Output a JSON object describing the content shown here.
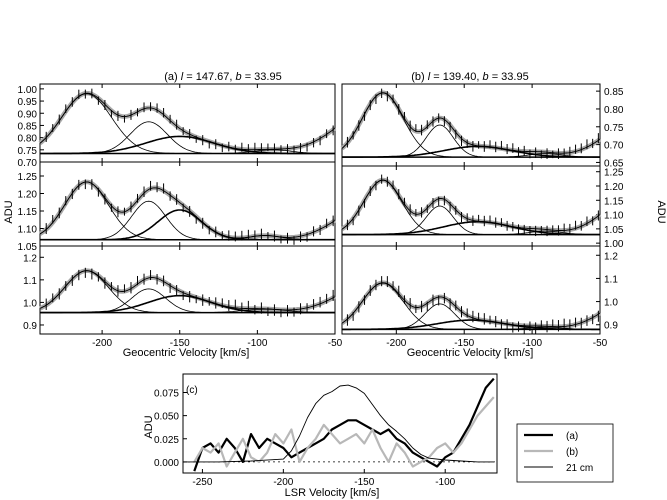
{
  "panel_titles": {
    "a": {
      "prefix": "(a) ",
      "l_sym": "l",
      "l_val": " = 147.67,  ",
      "b_sym": "b",
      "b_val": " =  33.95"
    },
    "b": {
      "prefix": "(b) ",
      "l_sym": "l",
      "l_val": " = 139.40,  ",
      "b_sym": "b",
      "b_val": " =  33.95"
    }
  },
  "labels": {
    "adu_left": "ADU",
    "adu_right": "ADU",
    "xlabel_a": "Geocentric Velocity [km/s]",
    "xlabel_b": "Geocentric Velocity [km/s]",
    "xlabel_c": "LSR Velocity [km/s]",
    "ylabel_c": "ADU",
    "panel_c_tag": "(c)"
  },
  "colors": {
    "spectrum_a": "#000000",
    "spectrum_b": "#b8b8b8",
    "hi_21cm": "#000000",
    "model_gray": "#a8a8a8",
    "error_bar": "#000000"
  },
  "chart_data": [
    {
      "id": "a-row1",
      "type": "line",
      "x_range": [
        -240,
        -50
      ],
      "ylim": [
        0.7,
        1.02
      ],
      "y_ticks": [
        "0.70",
        "0.75",
        "0.80",
        "0.85",
        "0.90",
        "0.95",
        "1.00"
      ],
      "y_side": "left",
      "continuum": 0.735,
      "components": [
        {
          "center": -210,
          "sigma": 16,
          "amplitude": 0.245
        },
        {
          "center": -170,
          "sigma": 12,
          "amplitude": 0.13
        },
        {
          "center": -150,
          "sigma": 22,
          "amplitude": 0.07
        },
        {
          "center": -90,
          "sigma": 12,
          "amplitude": 0.015
        }
      ],
      "wing": {
        "start": -95,
        "amplitude": 0.08
      }
    },
    {
      "id": "a-row2",
      "type": "line",
      "x_range": [
        -240,
        -50
      ],
      "ylim": [
        1.05,
        1.29
      ],
      "y_ticks": [
        "1.05",
        "1.10",
        "1.15",
        "1.20",
        "1.25"
      ],
      "y_side": "left",
      "continuum": 1.068,
      "components": [
        {
          "center": -210,
          "sigma": 14,
          "amplitude": 0.165
        },
        {
          "center": -170,
          "sigma": 11,
          "amplitude": 0.11
        },
        {
          "center": -150,
          "sigma": 14,
          "amplitude": 0.085
        },
        {
          "center": -95,
          "sigma": 10,
          "amplitude": 0.012
        }
      ],
      "wing": {
        "start": -90,
        "amplitude": 0.055
      }
    },
    {
      "id": "a-row3",
      "type": "line",
      "x_range": [
        -240,
        -50
      ],
      "ylim": [
        0.86,
        1.25
      ],
      "y_ticks": [
        "0.9",
        "1.0",
        "1.1",
        "1.2"
      ],
      "y_side": "left",
      "continuum": 0.955,
      "components": [
        {
          "center": -210,
          "sigma": 14,
          "amplitude": 0.185
        },
        {
          "center": -170,
          "sigma": 11,
          "amplitude": 0.105
        },
        {
          "center": -150,
          "sigma": 20,
          "amplitude": 0.075
        },
        {
          "center": -95,
          "sigma": 14,
          "amplitude": 0.015
        }
      ],
      "wing": {
        "start": -90,
        "amplitude": 0.07
      }
    },
    {
      "id": "b-row1",
      "type": "line",
      "x_range": [
        -240,
        -50
      ],
      "ylim": [
        0.64,
        0.87
      ],
      "y_ticks": [
        "0.65",
        "0.70",
        "0.75",
        "0.80",
        "0.85"
      ],
      "y_side": "right",
      "continuum": 0.665,
      "components": [
        {
          "center": -210,
          "sigma": 15,
          "amplitude": 0.18
        },
        {
          "center": -168,
          "sigma": 10,
          "amplitude": 0.09
        },
        {
          "center": -140,
          "sigma": 25,
          "amplitude": 0.03
        },
        {
          "center": -90,
          "sigma": 12,
          "amplitude": 0.01
        }
      ],
      "wing": {
        "start": -90,
        "amplitude": 0.05
      }
    },
    {
      "id": "b-row2",
      "type": "line",
      "x_range": [
        -240,
        -50
      ],
      "ylim": [
        0.99,
        1.27
      ],
      "y_ticks": [
        "1.00",
        "1.05",
        "1.10",
        "1.15",
        "1.20",
        "1.25"
      ],
      "y_side": "right",
      "continuum": 1.03,
      "components": [
        {
          "center": -210,
          "sigma": 14,
          "amplitude": 0.19
        },
        {
          "center": -168,
          "sigma": 10,
          "amplitude": 0.1
        },
        {
          "center": -140,
          "sigma": 25,
          "amplitude": 0.045
        },
        {
          "center": -90,
          "sigma": 12,
          "amplitude": 0.012
        }
      ],
      "wing": {
        "start": -90,
        "amplitude": 0.07
      }
    },
    {
      "id": "b-row3",
      "type": "line",
      "x_range": [
        -240,
        -50
      ],
      "ylim": [
        0.86,
        1.24
      ],
      "y_ticks": [
        "0.9",
        "1.0",
        "1.1",
        "1.2"
      ],
      "y_side": "right",
      "continuum": 0.88,
      "components": [
        {
          "center": -210,
          "sigma": 15,
          "amplitude": 0.2
        },
        {
          "center": -168,
          "sigma": 11,
          "amplitude": 0.11
        },
        {
          "center": -145,
          "sigma": 25,
          "amplitude": 0.04
        },
        {
          "center": -90,
          "sigma": 12,
          "amplitude": 0.01
        }
      ],
      "wing": {
        "start": -90,
        "amplitude": 0.07
      }
    },
    {
      "id": "c",
      "type": "line",
      "x_range": [
        -262,
        -68
      ],
      "ylim": [
        -0.012,
        0.095
      ],
      "x_ticks": [
        "-250",
        "-200",
        "-150",
        "-100"
      ],
      "y_ticks": [
        "0.000",
        "0.025",
        "0.050",
        "0.075"
      ],
      "legend": {
        "position": "right",
        "entries": [
          "(a)",
          "(b)",
          "21 cm"
        ]
      },
      "series": [
        {
          "name": "(a)",
          "x": [
            -255,
            -250,
            -245,
            -240,
            -235,
            -230,
            -225,
            -220,
            -215,
            -210,
            -205,
            -200,
            -195,
            -190,
            -185,
            -180,
            -175,
            -170,
            -165,
            -160,
            -155,
            -150,
            -145,
            -140,
            -135,
            -130,
            -125,
            -120,
            -115,
            -110,
            -105,
            -100,
            -95,
            -90,
            -85,
            -80,
            -75,
            -70
          ],
          "y": [
            -0.01,
            0.015,
            0.02,
            0.01,
            0.025,
            0.015,
            0.0,
            0.03,
            0.015,
            0.025,
            0.02,
            0.015,
            0.005,
            0.01,
            0.015,
            0.02,
            0.025,
            0.035,
            0.04,
            0.045,
            0.045,
            0.04,
            0.035,
            0.03,
            0.035,
            0.025,
            0.02,
            0.01,
            0.005,
            0.0,
            -0.005,
            0.005,
            0.01,
            0.025,
            0.04,
            0.06,
            0.08,
            0.09
          ]
        },
        {
          "name": "(b)",
          "x": [
            -255,
            -250,
            -245,
            -240,
            -235,
            -230,
            -225,
            -220,
            -215,
            -210,
            -205,
            -200,
            -195,
            -190,
            -185,
            -180,
            -175,
            -170,
            -165,
            -160,
            -155,
            -150,
            -145,
            -140,
            -135,
            -130,
            -125,
            -120,
            -115,
            -110,
            -105,
            -100,
            -95,
            -90,
            -85,
            -80,
            -75,
            -70
          ],
          "y": [
            0.0,
            0.015,
            0.01,
            0.02,
            -0.005,
            0.01,
            0.025,
            0.005,
            0.0,
            0.01,
            0.03,
            0.02,
            0.035,
            0.0,
            0.015,
            0.025,
            0.04,
            0.03,
            0.02,
            0.025,
            0.03,
            0.02,
            0.035,
            0.015,
            0.0,
            0.02,
            0.01,
            -0.005,
            0.0,
            0.005,
            0.015,
            0.02,
            0.01,
            0.02,
            0.035,
            0.05,
            0.06,
            0.07
          ]
        },
        {
          "name": "21 cm",
          "x": [
            -262,
            -240,
            -220,
            -200,
            -195,
            -190,
            -185,
            -180,
            -175,
            -170,
            -165,
            -160,
            -155,
            -150,
            -145,
            -140,
            -135,
            -130,
            -125,
            -120,
            -115,
            -110,
            -100,
            -90,
            -80,
            -70
          ],
          "y": [
            0.0,
            0.0,
            0.001,
            0.003,
            0.012,
            0.028,
            0.048,
            0.063,
            0.072,
            0.076,
            0.082,
            0.083,
            0.08,
            0.074,
            0.062,
            0.05,
            0.04,
            0.033,
            0.025,
            0.015,
            0.008,
            0.004,
            0.002,
            0.001,
            0.0,
            0.0
          ]
        }
      ]
    }
  ],
  "tick_labels": {
    "x_geo": [
      "-200",
      "-150",
      "-100",
      "-50"
    ]
  }
}
